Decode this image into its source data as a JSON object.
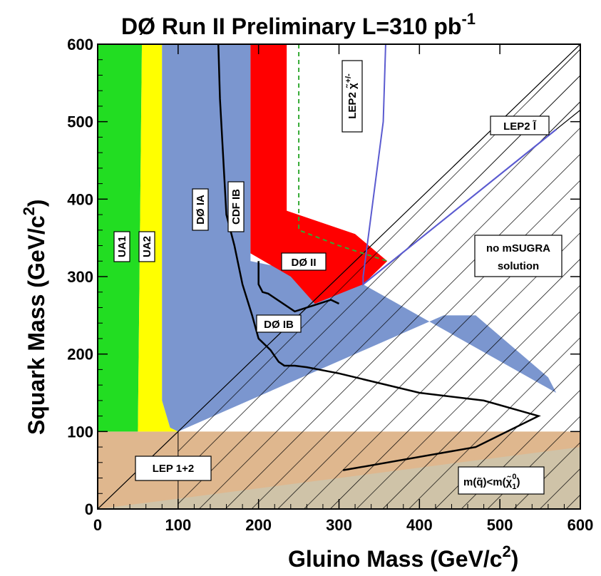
{
  "chart_data": {
    "type": "area",
    "title": "DØ Run II Preliminary  L=310 pb",
    "title_sup": "-1",
    "xlabel": "Gluino Mass (GeV/c",
    "xlabel_sup": "2",
    "xlabel_end": ")",
    "ylabel": "Squark Mass (GeV/c",
    "ylabel_sup": "2",
    "ylabel_end": ")",
    "xlim": [
      0,
      600
    ],
    "ylim": [
      0,
      600
    ],
    "xticks": [
      "0",
      "100",
      "200",
      "300",
      "400",
      "500",
      "600"
    ],
    "yticks": [
      "0",
      "100",
      "200",
      "300",
      "400",
      "500",
      "600"
    ],
    "colors": {
      "ua1": "#22dd22",
      "ua2": "#ffff00",
      "d0_ia_region": "#7b96cf",
      "d0_ii": "#ff0000",
      "lep": "#dfb78e",
      "lep_gray": "#cfc3a8",
      "lep_chargino_line": "#5b5bd0",
      "dashed_line": "#33aa33",
      "frame": "#000000"
    },
    "regions": [
      {
        "name": "UA1",
        "x": [
          0,
          50,
          55,
          55,
          0
        ],
        "y": [
          100,
          100,
          600,
          600,
          600
        ]
      },
      {
        "name": "UA2",
        "x": [
          50,
          55,
          80,
          80,
          90,
          100
        ],
        "y": [
          100,
          600,
          600,
          140,
          105,
          100
        ]
      },
      {
        "name": "DØ IA / CDF IB",
        "x": [
          80,
          190,
          190,
          330,
          570,
          560,
          470,
          430,
          100,
          90,
          80
        ],
        "y": [
          600,
          600,
          320,
          290,
          150,
          170,
          250,
          250,
          100,
          105,
          140
        ]
      },
      {
        "name": "DØ II",
        "x": [
          190,
          235,
          235,
          320,
          360,
          330,
          270,
          240,
          190
        ],
        "y": [
          600,
          600,
          385,
          355,
          320,
          290,
          265,
          300,
          330
        ]
      },
      {
        "name": "LEP 1+2",
        "x": [
          0,
          600,
          600,
          0
        ],
        "y": [
          0,
          0,
          100,
          100
        ]
      }
    ],
    "curves": [
      {
        "name": "DØ IA",
        "x": [
          150,
          152,
          160,
          170,
          180,
          192,
          200,
          215,
          225,
          232,
          245,
          260,
          300,
          400,
          480,
          548,
          470,
          305
        ],
        "y": [
          600,
          530,
          380,
          340,
          290,
          250,
          220,
          205,
          190,
          185,
          185,
          183,
          175,
          150,
          140,
          120,
          80,
          50
        ]
      },
      {
        "name": "CDF IB",
        "x": [
          200,
          200,
          205,
          212,
          245,
          260,
          290,
          300
        ],
        "y": [
          320,
          290,
          280,
          278,
          255,
          260,
          270,
          265
        ]
      },
      {
        "name": "LEP2 chargino",
        "x": [
          358,
          355,
          330,
          330,
          570
        ],
        "y": [
          600,
          500,
          300,
          290,
          490
        ]
      },
      {
        "name": "LEP2 slepton",
        "x": [
          330,
          570
        ],
        "y": [
          290,
          490
        ]
      }
    ],
    "annotations": {
      "ua1": "UA1",
      "ua2": "UA2",
      "d0ia": "DØ IA",
      "cdfib": "CDF IB",
      "d0ii": "DØ II",
      "d0ib": "DØ IB",
      "lep2_chargino": "LEP2 χ̃",
      "lep2_chargino_sup": "+/-",
      "lep2_slepton": "LEP2 l̃",
      "no_msugra_1": "no mSUGRA",
      "no_msugra_2": "solution",
      "lep12": "LEP 1+2",
      "mq_lt_mchi": "m(q̃)<m(χ̃",
      "mq_lt_mchi_sub": "1",
      "mq_lt_mchi_sup": "0",
      "mq_lt_mchi_end": ")"
    }
  }
}
